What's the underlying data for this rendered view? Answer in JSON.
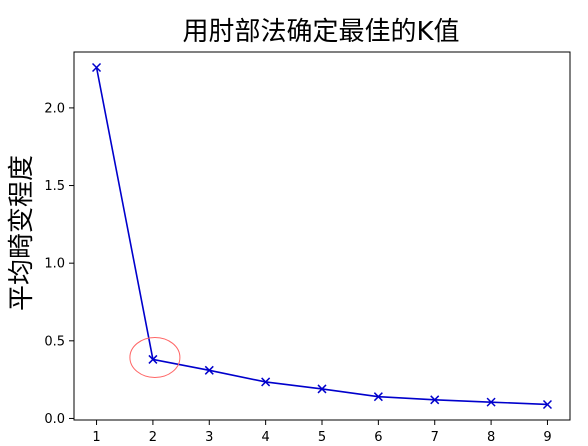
{
  "chart_data": {
    "type": "line",
    "title": "用肘部法确定最佳的K值",
    "xlabel": "",
    "ylabel": "平均畸变程度",
    "x": [
      1,
      2,
      3,
      4,
      5,
      6,
      7,
      8,
      9
    ],
    "series": [
      {
        "values": [
          2.26,
          0.38,
          0.31,
          0.235,
          0.19,
          0.14,
          0.12,
          0.105,
          0.09
        ],
        "color": "#0000cc",
        "marker": "x"
      }
    ],
    "xlim": [
      0.6,
      9.4
    ],
    "ylim": [
      -0.01,
      2.36
    ],
    "xticks": [
      "1",
      "2",
      "3",
      "4",
      "5",
      "6",
      "7",
      "8",
      "9"
    ],
    "yticks": [
      "0.0",
      "0.5",
      "1.0",
      "1.5",
      "2.0"
    ],
    "grid": false,
    "annotation": {
      "x": 2,
      "y": 0.38,
      "shape": "circle",
      "color": "#ff6666"
    }
  }
}
